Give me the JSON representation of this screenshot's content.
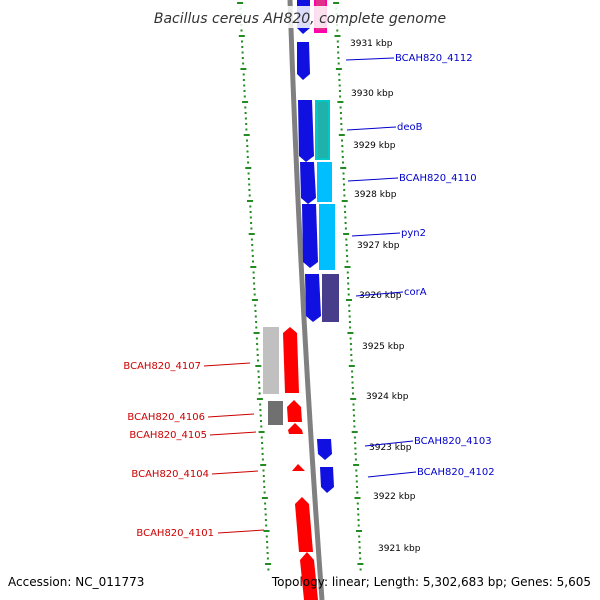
{
  "title": "Bacillus cereus AH820, complete genome",
  "accession": "Accession: NC_011773",
  "topology": "Topology: linear; Length: 5,302,683 bp; Genes: 5,605",
  "colors": {
    "forward_label": "#0000cc",
    "reverse_label": "#cc0000",
    "dots": "#228b22",
    "backbone": "#808080"
  },
  "ticks": [
    "3931 kbp",
    "3930 kbp",
    "3929 kbp",
    "3928 kbp",
    "3927 kbp",
    "3926 kbp",
    "3925 kbp",
    "3924 kbp",
    "3923 kbp",
    "3922 kbp",
    "3921 kbp"
  ],
  "forward_genes": [
    {
      "label": "BCAH820_4112"
    },
    {
      "label": "deoB"
    },
    {
      "label": "BCAH820_4110"
    },
    {
      "label": "pyn2"
    },
    {
      "label": "corA"
    },
    {
      "label": "BCAH820_4103"
    },
    {
      "label": "BCAH820_4102"
    }
  ],
  "reverse_genes": [
    {
      "label": "BCAH820_4107"
    },
    {
      "label": "BCAH820_4106"
    },
    {
      "label": "BCAH820_4105"
    },
    {
      "label": "BCAH820_4104"
    },
    {
      "label": "BCAH820_4101"
    }
  ]
}
